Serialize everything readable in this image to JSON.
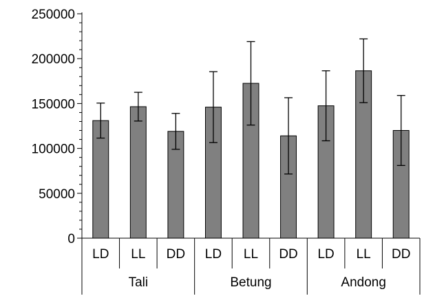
{
  "chart_data": {
    "type": "bar",
    "groups": [
      {
        "name": "Tali",
        "categories": [
          "LD",
          "LL",
          "DD"
        ]
      },
      {
        "name": "Betung",
        "categories": [
          "LD",
          "LL",
          "DD"
        ]
      },
      {
        "name": "Andong",
        "categories": [
          "LD",
          "LL",
          "DD"
        ]
      }
    ],
    "values": [
      131000,
      146500,
      119000,
      146000,
      172500,
      114000,
      147500,
      186500,
      120000
    ],
    "error": [
      19500,
      16000,
      20000,
      39500,
      46500,
      42500,
      39000,
      35500,
      39000
    ],
    "ylim": [
      0,
      250000
    ],
    "yticks": [
      0,
      50000,
      100000,
      150000,
      200000,
      250000
    ],
    "ytick_labels": [
      "0",
      "50000",
      "100000",
      "150000",
      "200000",
      "250000"
    ],
    "bar_color": "#808080",
    "title": "",
    "xlabel": "",
    "ylabel": "",
    "legend": "none",
    "grid": false
  }
}
